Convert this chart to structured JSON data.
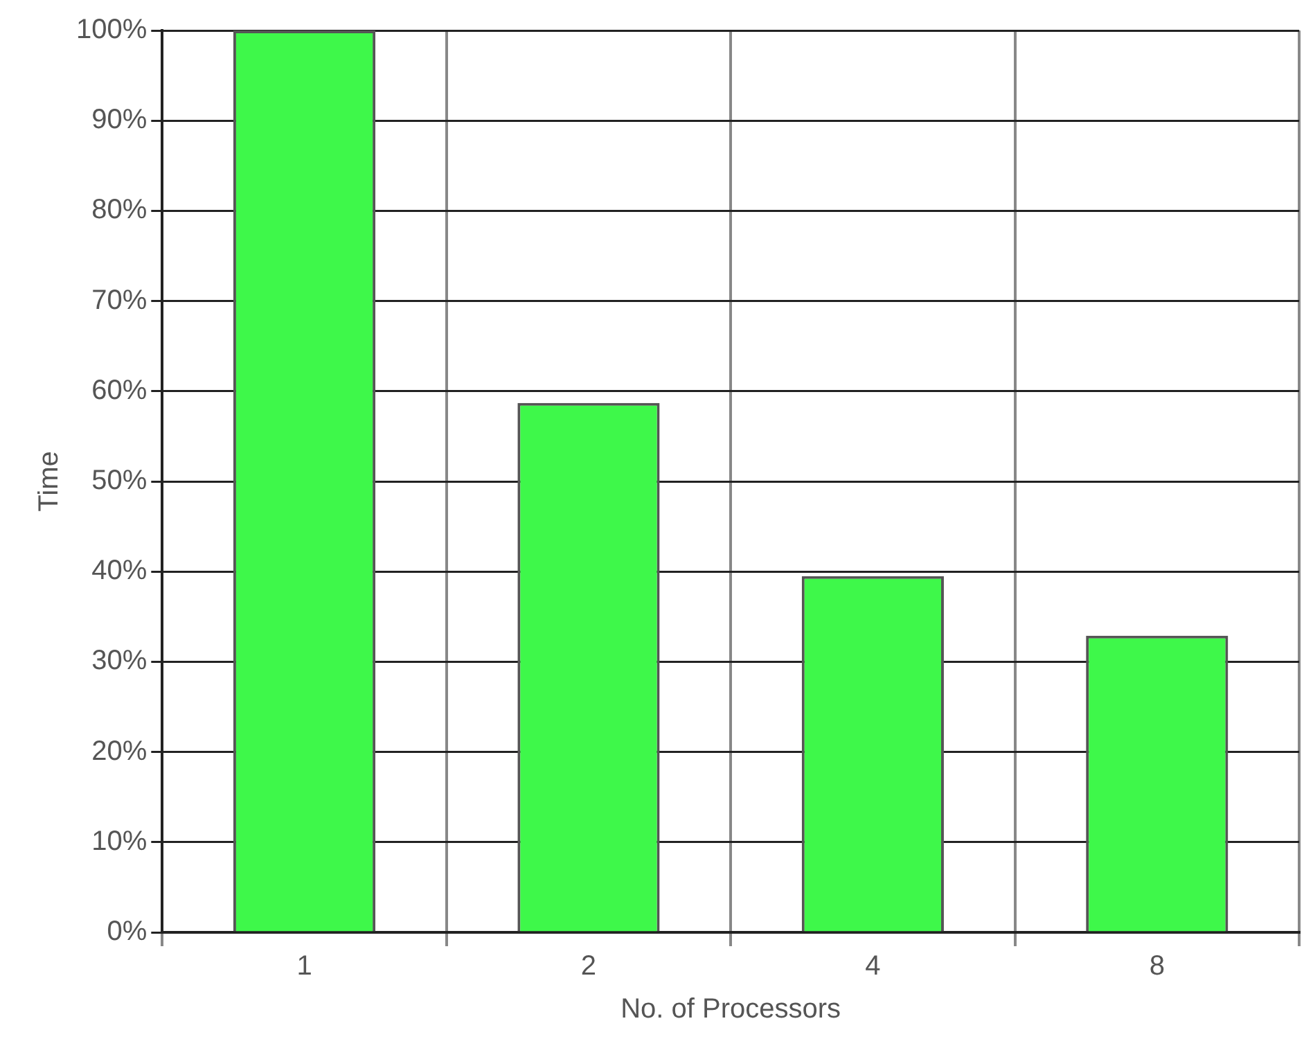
{
  "chart_data": {
    "type": "bar",
    "xlabel": "No. of Processors",
    "ylabel": "Time",
    "categories": [
      "1",
      "2",
      "4",
      "8"
    ],
    "values": [
      100,
      58.7,
      39.5,
      32.9
    ],
    "color": "#3ef84a",
    "ylim": [
      0,
      100
    ],
    "yticks": [
      {
        "value": 0,
        "label": "0%"
      },
      {
        "value": 10,
        "label": "10%"
      },
      {
        "value": 20,
        "label": "20%"
      },
      {
        "value": 30,
        "label": "30%"
      },
      {
        "value": 40,
        "label": "40%"
      },
      {
        "value": 50,
        "label": "50%"
      },
      {
        "value": 60,
        "label": "60%"
      },
      {
        "value": 70,
        "label": "70%"
      },
      {
        "value": 80,
        "label": "80%"
      },
      {
        "value": 90,
        "label": "90%"
      },
      {
        "value": 100,
        "label": "100%"
      }
    ],
    "grid": true
  }
}
